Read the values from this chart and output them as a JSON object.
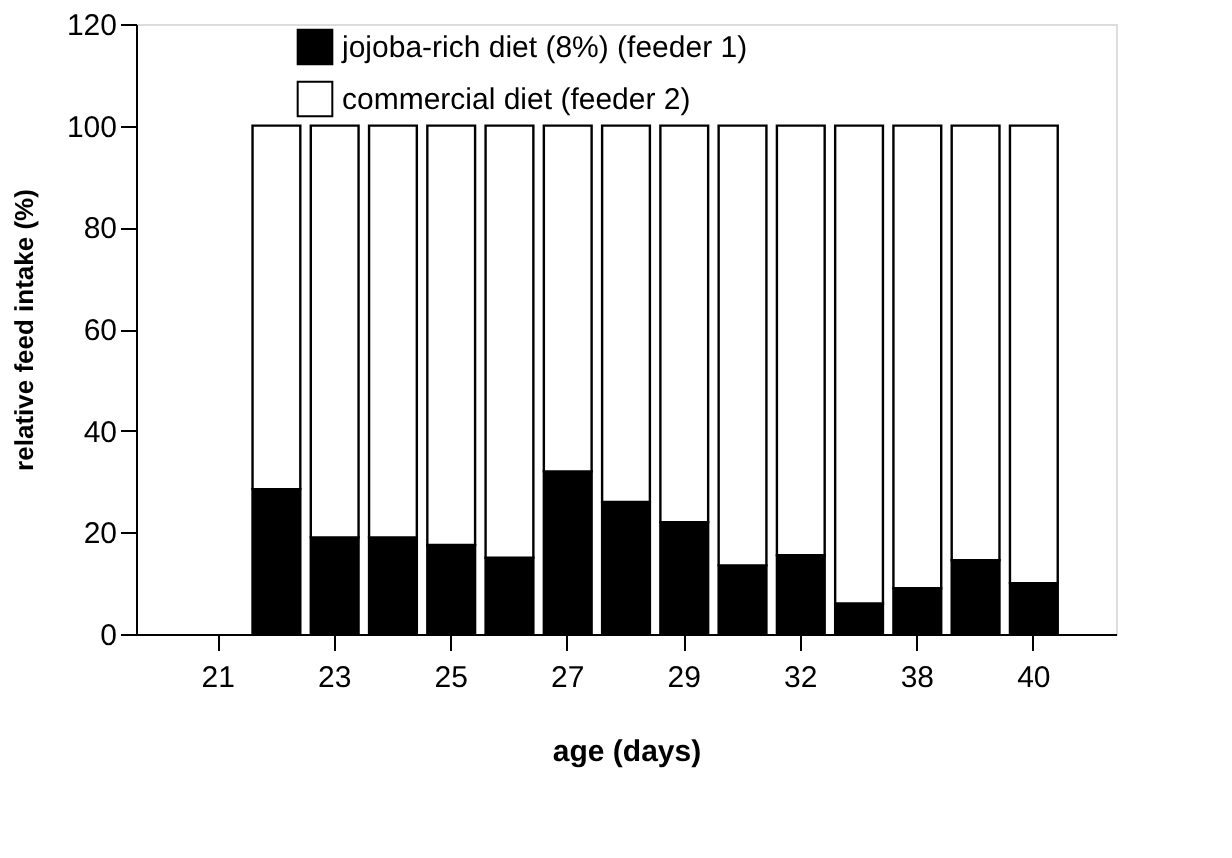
{
  "chart_data": {
    "type": "bar",
    "stacked": true,
    "xlabel": "age (days)",
    "ylabel": "relative feed intake (%)",
    "categories": [
      "21",
      null,
      "23",
      null,
      "25",
      null,
      "27",
      null,
      "29",
      null,
      "32",
      null,
      "38",
      null,
      "40"
    ],
    "series": [
      {
        "name": "jojoba-rich diet (8%) (feeder 1)",
        "color": "#000000",
        "values": [
          null,
          28.5,
          19,
          19,
          17.5,
          15,
          32,
          26,
          22,
          13.5,
          15.5,
          6,
          9,
          14.5,
          10
        ]
      },
      {
        "name": "commercial diet (feeder 2)",
        "color": "#ffffff",
        "values": [
          null,
          71.5,
          81,
          81,
          82.5,
          85,
          68,
          74,
          78,
          86.5,
          84.5,
          94,
          91,
          85.5,
          90
        ]
      }
    ],
    "ylim": [
      0,
      120
    ],
    "yticks": [
      0,
      20,
      40,
      60,
      80,
      100,
      120
    ],
    "grid": false,
    "legend": "top left"
  }
}
